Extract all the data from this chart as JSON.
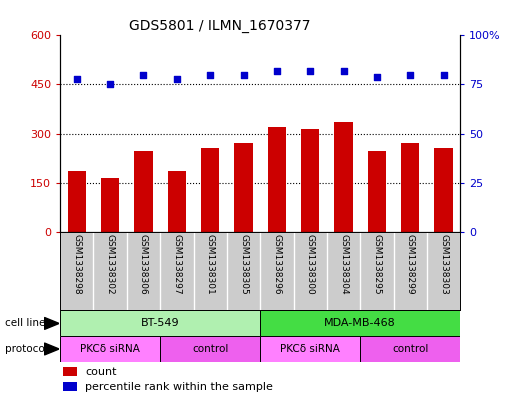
{
  "title": "GDS5801 / ILMN_1670377",
  "samples": [
    "GSM1338298",
    "GSM1338302",
    "GSM1338306",
    "GSM1338297",
    "GSM1338301",
    "GSM1338305",
    "GSM1338296",
    "GSM1338300",
    "GSM1338304",
    "GSM1338295",
    "GSM1338299",
    "GSM1338303"
  ],
  "counts": [
    185,
    165,
    248,
    185,
    255,
    270,
    320,
    315,
    335,
    248,
    270,
    255
  ],
  "percentiles": [
    78,
    75,
    80,
    78,
    80,
    80,
    82,
    82,
    82,
    79,
    80,
    80
  ],
  "bar_color": "#cc0000",
  "dot_color": "#0000cc",
  "ylim_left": [
    0,
    600
  ],
  "ylim_right": [
    0,
    100
  ],
  "yticks_left": [
    0,
    150,
    300,
    450,
    600
  ],
  "yticks_right": [
    0,
    25,
    50,
    75,
    100
  ],
  "ytick_labels_left": [
    "0",
    "150",
    "300",
    "450",
    "600"
  ],
  "ytick_labels_right": [
    "0",
    "25",
    "50",
    "75",
    "100%"
  ],
  "gridlines_at": [
    150,
    300,
    450
  ],
  "cell_line_groups": [
    {
      "label": "BT-549",
      "start": 0,
      "end": 6,
      "color": "#b0f0b0"
    },
    {
      "label": "MDA-MB-468",
      "start": 6,
      "end": 12,
      "color": "#44dd44"
    }
  ],
  "protocol_groups": [
    {
      "label": "PKCδ siRNA",
      "start": 0,
      "end": 3,
      "color": "#ff80ff"
    },
    {
      "label": "control",
      "start": 3,
      "end": 6,
      "color": "#ee60ee"
    },
    {
      "label": "PKCδ siRNA",
      "start": 6,
      "end": 9,
      "color": "#ff80ff"
    },
    {
      "label": "control",
      "start": 9,
      "end": 12,
      "color": "#ee60ee"
    }
  ],
  "sample_bg_color": "#cccccc",
  "legend_count_color": "#cc0000",
  "legend_percentile_color": "#0000cc",
  "background_color": "#ffffff",
  "plot_bg_color": "#ffffff",
  "grid_color": "#000000",
  "tick_label_color_left": "#cc0000",
  "tick_label_color_right": "#0000cc",
  "bar_width": 0.55,
  "dot_size": 22
}
